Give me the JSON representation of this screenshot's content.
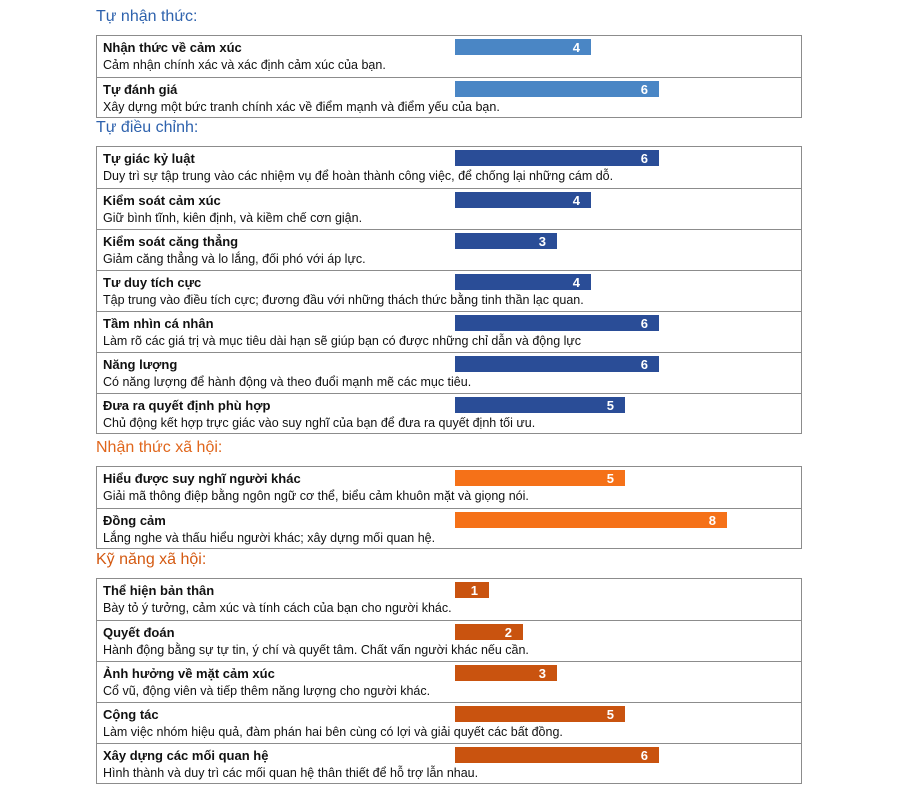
{
  "chart_data": {
    "type": "bar",
    "orientation": "horizontal",
    "xlim": [
      0,
      8
    ],
    "grid": false,
    "legend": "none",
    "sections": [
      {
        "title": "Tự nhận thức:",
        "color": "#2f5da8",
        "title_color": "#2e62ad",
        "bar_color": "#4a86c5",
        "items": [
          {
            "name": "Nhận thức về cảm xúc",
            "description": "Cảm nhận chính xác và xác định cảm xúc của bạn.",
            "value": 4
          },
          {
            "name": "Tự đánh giá",
            "description": "Xây dựng một bức tranh chính xác về điểm mạnh và điểm yếu của bạn.",
            "value": 6
          }
        ]
      },
      {
        "title": "Tự điều chỉnh:",
        "title_color": "#2e62ad",
        "bar_color": "#2a4d97",
        "items": [
          {
            "name": "Tự giác kỷ luật",
            "description": "Duy trì sự tập trung vào các nhiệm vụ để hoàn thành công việc, để chống lại những cám dỗ.",
            "value": 6
          },
          {
            "name": "Kiểm soát cảm xúc",
            "description": "Giữ bình tĩnh, kiên định, và kiềm chế cơn giận.",
            "value": 4
          },
          {
            "name": "Kiểm soát căng thẳng",
            "description": "Giảm căng thẳng và lo lắng, đối phó với áp lực.",
            "value": 3
          },
          {
            "name": "Tư duy tích cực",
            "description": "Tập trung vào điều tích cực; đương đầu với những thách thức bằng tinh thần lạc quan.",
            "value": 4
          },
          {
            "name": "Tầm nhìn cá nhân",
            "description": "Làm rõ các giá trị và mục tiêu dài hạn sẽ giúp bạn có được những chỉ dẫn và động lực",
            "value": 6
          },
          {
            "name": "Năng lượng",
            "description": "Có năng lượng để hành động và theo đuổi mạnh mẽ các mục tiêu.",
            "value": 6
          },
          {
            "name": "Đưa ra quyết định phù hợp",
            "description": "Chủ động kết hợp trực giác vào suy nghĩ của bạn để đưa ra quyết định tối ưu.",
            "value": 5
          }
        ]
      },
      {
        "title": "Nhận thức xã hội:",
        "title_color": "#e0661c",
        "bar_color": "#f57118",
        "items": [
          {
            "name": "Hiểu được suy nghĩ người khác",
            "description": "Giải mã thông điệp bằng ngôn ngữ cơ thể, biểu cảm khuôn mặt và giọng nói.",
            "value": 5
          },
          {
            "name": "Đồng cảm",
            "description": "Lắng nghe và thấu hiểu người khác; xây dựng mối quan hệ.",
            "value": 8
          }
        ]
      },
      {
        "title": "Kỹ năng xã hội:",
        "title_color": "#d45a12",
        "bar_color": "#c9530f",
        "items": [
          {
            "name": "Thể hiện bản thân",
            "description": "Bày tỏ ý tưởng, cảm xúc và tính cách của bạn cho người khác.",
            "value": 1
          },
          {
            "name": "Quyết đoán",
            "description": "Hành động bằng sự tự tin, ý chí và quyết tâm. Chất vấn người khác nếu cần.",
            "value": 2
          },
          {
            "name": "Ảnh hưởng về mặt cảm xúc",
            "description": "Cổ vũ, động viên và tiếp thêm năng lượng cho người khác.",
            "value": 3
          },
          {
            "name": "Cộng tác",
            "description": "Làm việc nhóm hiệu quả, đàm phán hai bên cùng có lợi và giải quyết các bất đồng.",
            "value": 5
          },
          {
            "name": "Xây dựng các mối quan hệ",
            "description": "Hình thành và duy trì các mối quan hệ thân thiết để hỗ trợ lẫn nhau.",
            "value": 6
          }
        ]
      }
    ]
  }
}
